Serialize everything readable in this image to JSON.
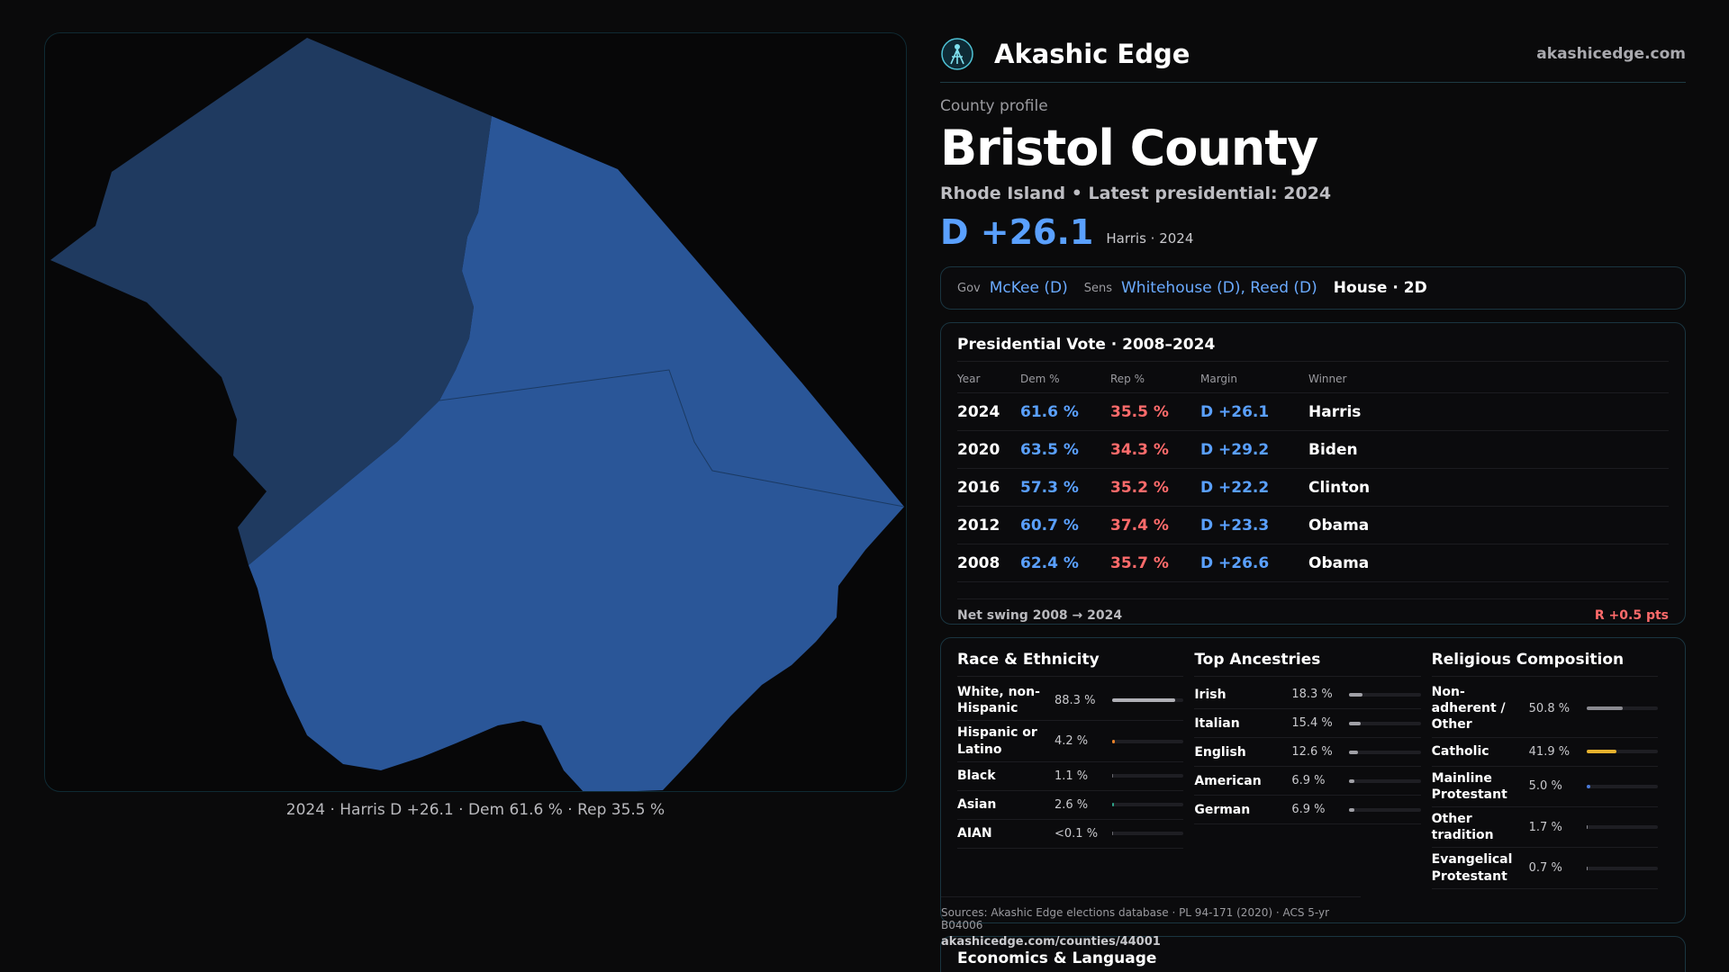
{
  "map": {
    "caption": "2024 · Harris D +26.1 · Dem 61.6 % · Rep 35.5 %",
    "colors": {
      "west": "#1f3a60",
      "main": "#2a5698",
      "border": "#0f2a33"
    }
  },
  "header": {
    "brand": "Akashic Edge",
    "site": "akashicedge.com",
    "logo_icon": "akashic-logo-icon"
  },
  "profile": {
    "subhead": "County profile",
    "name": "Bristol County",
    "stateline": "Rhode Island • Latest presidential: 2024",
    "margin": "D +26.1",
    "margin_note": "Harris · 2024"
  },
  "officials": {
    "gov_label": "Gov",
    "gov": "McKee (D)",
    "sens_label": "Sens",
    "sens": "Whitehouse (D), Reed (D)",
    "house": "House · 2D"
  },
  "presidential": {
    "title": "Presidential Vote · 2008–2024",
    "headers": [
      "Year",
      "Dem %",
      "Rep %",
      "Margin",
      "Winner"
    ],
    "rows": [
      {
        "year": "2024",
        "dem": "61.6 %",
        "rep": "35.5 %",
        "margin": "D +26.1",
        "winner": "Harris"
      },
      {
        "year": "2020",
        "dem": "63.5 %",
        "rep": "34.3 %",
        "margin": "D +29.2",
        "winner": "Biden"
      },
      {
        "year": "2016",
        "dem": "57.3 %",
        "rep": "35.2 %",
        "margin": "D +22.2",
        "winner": "Clinton"
      },
      {
        "year": "2012",
        "dem": "60.7 %",
        "rep": "37.4 %",
        "margin": "D +23.3",
        "winner": "Obama"
      },
      {
        "year": "2008",
        "dem": "62.4 %",
        "rep": "35.7 %",
        "margin": "D +26.6",
        "winner": "Obama"
      }
    ],
    "swing_label": "Net swing 2008 → 2024",
    "swing_value": "R +0.5 pts"
  },
  "race": {
    "title": "Race & Ethnicity",
    "rows": [
      {
        "label": "White, non-Hispanic",
        "value": "88.3 %",
        "pct": 88.3,
        "color": "#b0b0b6"
      },
      {
        "label": "Hispanic or Latino",
        "value": "4.2 %",
        "pct": 4.2,
        "color": "#e8822a"
      },
      {
        "label": "Black",
        "value": "1.1 %",
        "pct": 1.1,
        "color": "#6a6a70"
      },
      {
        "label": "Asian",
        "value": "2.6 %",
        "pct": 2.6,
        "color": "#2fa38a"
      },
      {
        "label": "AIAN",
        "value": "<0.1 %",
        "pct": 0.1,
        "color": "#6a6a70"
      }
    ]
  },
  "ancestry": {
    "title": "Top Ancestries",
    "rows": [
      {
        "label": "Irish",
        "value": "18.3 %",
        "pct": 18.3,
        "color": "#a0a0a6"
      },
      {
        "label": "Italian",
        "value": "15.4 %",
        "pct": 15.4,
        "color": "#a0a0a6"
      },
      {
        "label": "English",
        "value": "12.6 %",
        "pct": 12.6,
        "color": "#a0a0a6"
      },
      {
        "label": "American",
        "value": "6.9 %",
        "pct": 6.9,
        "color": "#a0a0a6"
      },
      {
        "label": "German",
        "value": "6.9 %",
        "pct": 6.9,
        "color": "#a0a0a6"
      }
    ]
  },
  "religion": {
    "title": "Religious Composition",
    "rows": [
      {
        "label": "Non-adherent / Other",
        "value": "50.8 %",
        "pct": 50.8,
        "color": "#8a8a90"
      },
      {
        "label": "Catholic",
        "value": "41.9 %",
        "pct": 41.9,
        "color": "#e6b22e"
      },
      {
        "label": "Mainline Protestant",
        "value": "5.0 %",
        "pct": 5.0,
        "color": "#4a7ad8"
      },
      {
        "label": "Other tradition",
        "value": "1.7 %",
        "pct": 1.7,
        "color": "#8a8a90"
      },
      {
        "label": "Evangelical Protestant",
        "value": "0.7 %",
        "pct": 0.7,
        "color": "#8a8a90"
      }
    ]
  },
  "sources": {
    "text": "Sources: Akashic Edge elections database · PL 94-171 (2020) · ACS 5-yr B04006",
    "url": "akashicedge.com/counties/44001"
  },
  "economics": {
    "title": "Economics & Language"
  }
}
